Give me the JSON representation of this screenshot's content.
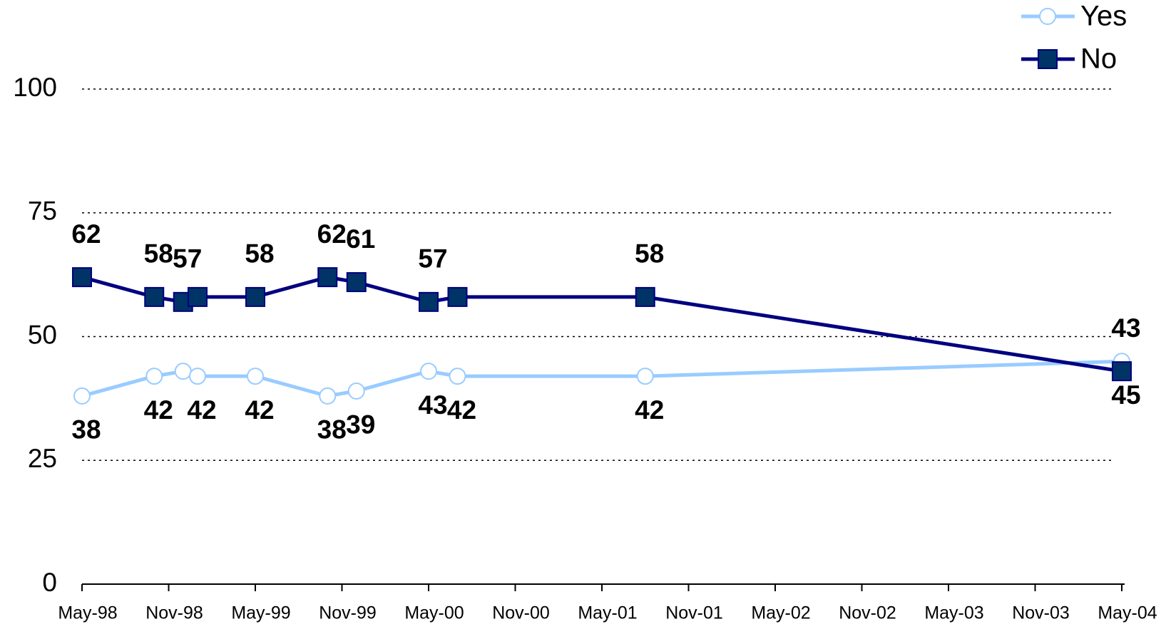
{
  "chart_data": {
    "type": "line",
    "x": [
      "1998-05",
      "1998-10",
      "1998-12",
      "1999-01",
      "1999-05",
      "1999-10",
      "1999-12",
      "2000-05",
      "2000-07",
      "2001-08",
      "2004-05"
    ],
    "series": [
      {
        "name": "Yes",
        "color": "#99ccff",
        "marker": "circle",
        "values": [
          38,
          42,
          43,
          42,
          42,
          38,
          39,
          43,
          42,
          42,
          45
        ],
        "value_labels": [
          38,
          42,
          null,
          42,
          42,
          38,
          39,
          43,
          42,
          42,
          45
        ]
      },
      {
        "name": "No",
        "color": "#000080",
        "marker": "square",
        "values": [
          62,
          58,
          57,
          58,
          58,
          62,
          61,
          57,
          58,
          58,
          43
        ],
        "value_labels": [
          62,
          58,
          57,
          null,
          58,
          62,
          61,
          57,
          null,
          58,
          43
        ]
      }
    ],
    "xlim": [
      "1998-05",
      "2004-05"
    ],
    "xticks": [
      {
        "value": "1998-05",
        "label": "May-98"
      },
      {
        "value": "1998-11",
        "label": "Nov-98"
      },
      {
        "value": "1999-05",
        "label": "May-99"
      },
      {
        "value": "1999-11",
        "label": "Nov-99"
      },
      {
        "value": "2000-05",
        "label": "May-00"
      },
      {
        "value": "2000-11",
        "label": "Nov-00"
      },
      {
        "value": "2001-05",
        "label": "May-01"
      },
      {
        "value": "2001-11",
        "label": "Nov-01"
      },
      {
        "value": "2002-05",
        "label": "May-02"
      },
      {
        "value": "2002-11",
        "label": "Nov-02"
      },
      {
        "value": "2003-05",
        "label": "May-03"
      },
      {
        "value": "2003-11",
        "label": "Nov-03"
      },
      {
        "value": "2004-05",
        "label": "May-04"
      }
    ],
    "ylim": [
      0,
      100
    ],
    "yticks": [
      0,
      25,
      50,
      75,
      100
    ],
    "grid": true,
    "legend": "top-right"
  }
}
